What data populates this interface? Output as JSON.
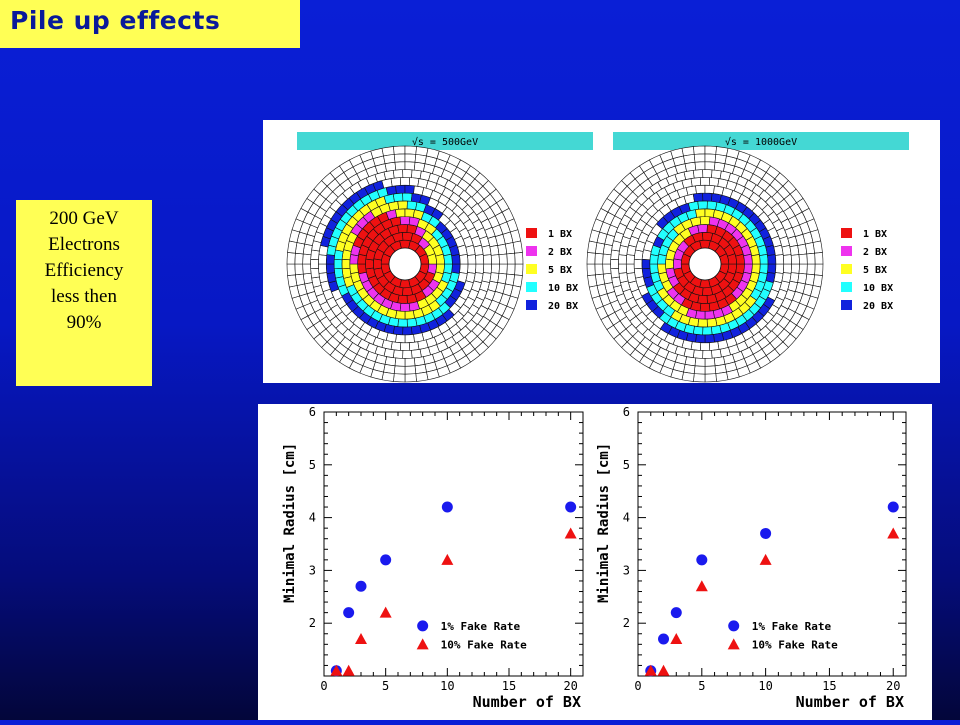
{
  "slide": {
    "title": "Pile up effects",
    "note_lines": [
      "200 GeV",
      "Electrons",
      "Efficiency",
      "less then",
      "90%"
    ]
  },
  "rings": [
    {
      "label": "√s = 500GeV",
      "legend": [
        {
          "label": "1 BX",
          "color": "#ee1111"
        },
        {
          "label": "2 BX",
          "color": "#ee33ee"
        },
        {
          "label": "5 BX",
          "color": "#ffff22"
        },
        {
          "label": "10 BX",
          "color": "#22ffff"
        },
        {
          "label": "20 BX",
          "color": "#1122dd"
        }
      ]
    },
    {
      "label": "√s = 1000GeV",
      "legend": [
        {
          "label": "1 BX",
          "color": "#ee1111"
        },
        {
          "label": "2 BX",
          "color": "#ee33ee"
        },
        {
          "label": "5 BX",
          "color": "#ffff22"
        },
        {
          "label": "10 BX",
          "color": "#22ffff"
        },
        {
          "label": "20 BX",
          "color": "#1122dd"
        }
      ]
    }
  ],
  "chart_data": [
    {
      "type": "scatter",
      "xlabel": "Number of BX",
      "ylabel": "Minimal Radius [cm]",
      "xlim": [
        0,
        21
      ],
      "ylim": [
        1,
        6
      ],
      "xticks": [
        0,
        5,
        10,
        15,
        20
      ],
      "yticks": [
        2,
        3,
        4,
        5,
        6
      ],
      "legend_position": "bottom-right",
      "series": [
        {
          "name": "1% Fake Rate",
          "marker": "circle",
          "color": "#1a1aee",
          "x": [
            1,
            2,
            3,
            5,
            10,
            20
          ],
          "y": [
            1.1,
            2.2,
            2.7,
            3.2,
            4.2,
            4.2
          ]
        },
        {
          "name": "10% Fake Rate",
          "marker": "triangle",
          "color": "#ee1111",
          "x": [
            1,
            2,
            3,
            5,
            10,
            20
          ],
          "y": [
            1.1,
            1.1,
            1.7,
            2.2,
            3.2,
            3.7
          ]
        }
      ]
    },
    {
      "type": "scatter",
      "xlabel": "Number of BX",
      "ylabel": "Minimal Radius [cm]",
      "xlim": [
        0,
        21
      ],
      "ylim": [
        1,
        6
      ],
      "xticks": [
        0,
        5,
        10,
        15,
        20
      ],
      "yticks": [
        2,
        3,
        4,
        5,
        6
      ],
      "legend_position": "bottom-right",
      "series": [
        {
          "name": "1% Fake Rate",
          "marker": "circle",
          "color": "#1a1aee",
          "x": [
            1,
            2,
            3,
            5,
            10,
            20
          ],
          "y": [
            1.1,
            1.7,
            2.2,
            3.2,
            3.7,
            4.2
          ]
        },
        {
          "name": "10% Fake Rate",
          "marker": "triangle",
          "color": "#ee1111",
          "x": [
            1,
            2,
            3,
            5,
            10,
            20
          ],
          "y": [
            1.1,
            1.1,
            1.7,
            2.7,
            3.2,
            3.7
          ]
        }
      ]
    }
  ]
}
